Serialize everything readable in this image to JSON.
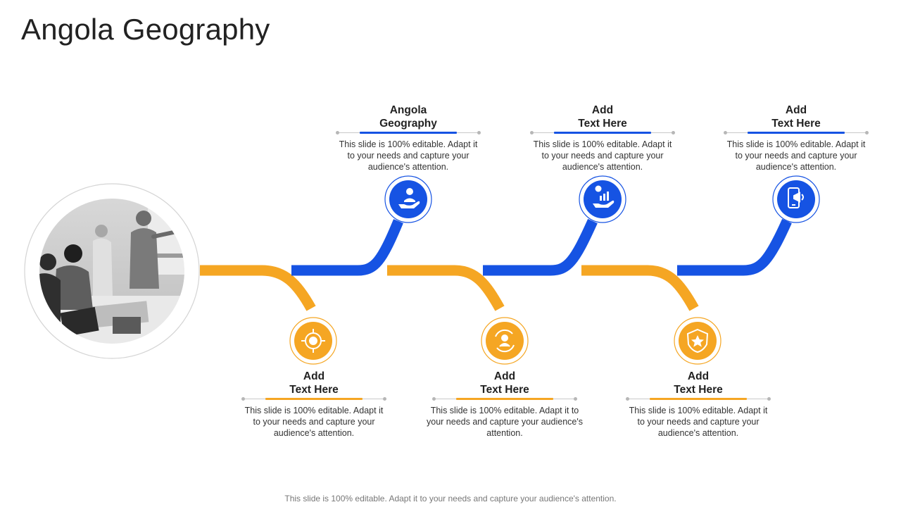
{
  "slide": {
    "title": "Angola Geography",
    "footer": "This slide is 100% editable. Adapt it to your needs and capture your audience's attention."
  },
  "colors": {
    "blue": "#1653e3",
    "orange": "#f5a623",
    "text": "#222222",
    "muted": "#777777"
  },
  "photo": {
    "subject": "team meeting in office, presenter at whiteboard (grayscale)"
  },
  "steps_top": [
    {
      "title_line1": "Angola",
      "title_line2": "Geography",
      "description": "This slide is 100% editable. Adapt it to your needs and capture your audience's attention.",
      "icon": "hand-user-icon"
    },
    {
      "title_line1": "Add",
      "title_line2": "Text Here",
      "description": "This slide is 100% editable. Adapt it to your needs and capture your audience's attention.",
      "icon": "hand-growth-chart-icon"
    },
    {
      "title_line1": "Add",
      "title_line2": "Text Here",
      "description": "This slide is 100% editable. Adapt it to your needs and capture your audience's attention.",
      "icon": "mobile-megaphone-icon"
    }
  ],
  "steps_bottom": [
    {
      "title_line1": "Add",
      "title_line2": "Text Here",
      "description": "This slide is 100% editable. Adapt it to your needs and capture your audience's attention.",
      "icon": "target-globe-icon"
    },
    {
      "title_line1": "Add",
      "title_line2": "Text Here",
      "description": "This slide is 100% editable. Adapt it to your needs and capture your audience's attention.",
      "icon": "cycle-people-icon"
    },
    {
      "title_line1": "Add",
      "title_line2": "Text Here",
      "description": "This slide is 100% editable. Adapt it to your needs and capture your audience's attention.",
      "icon": "star-badge-icon"
    }
  ]
}
